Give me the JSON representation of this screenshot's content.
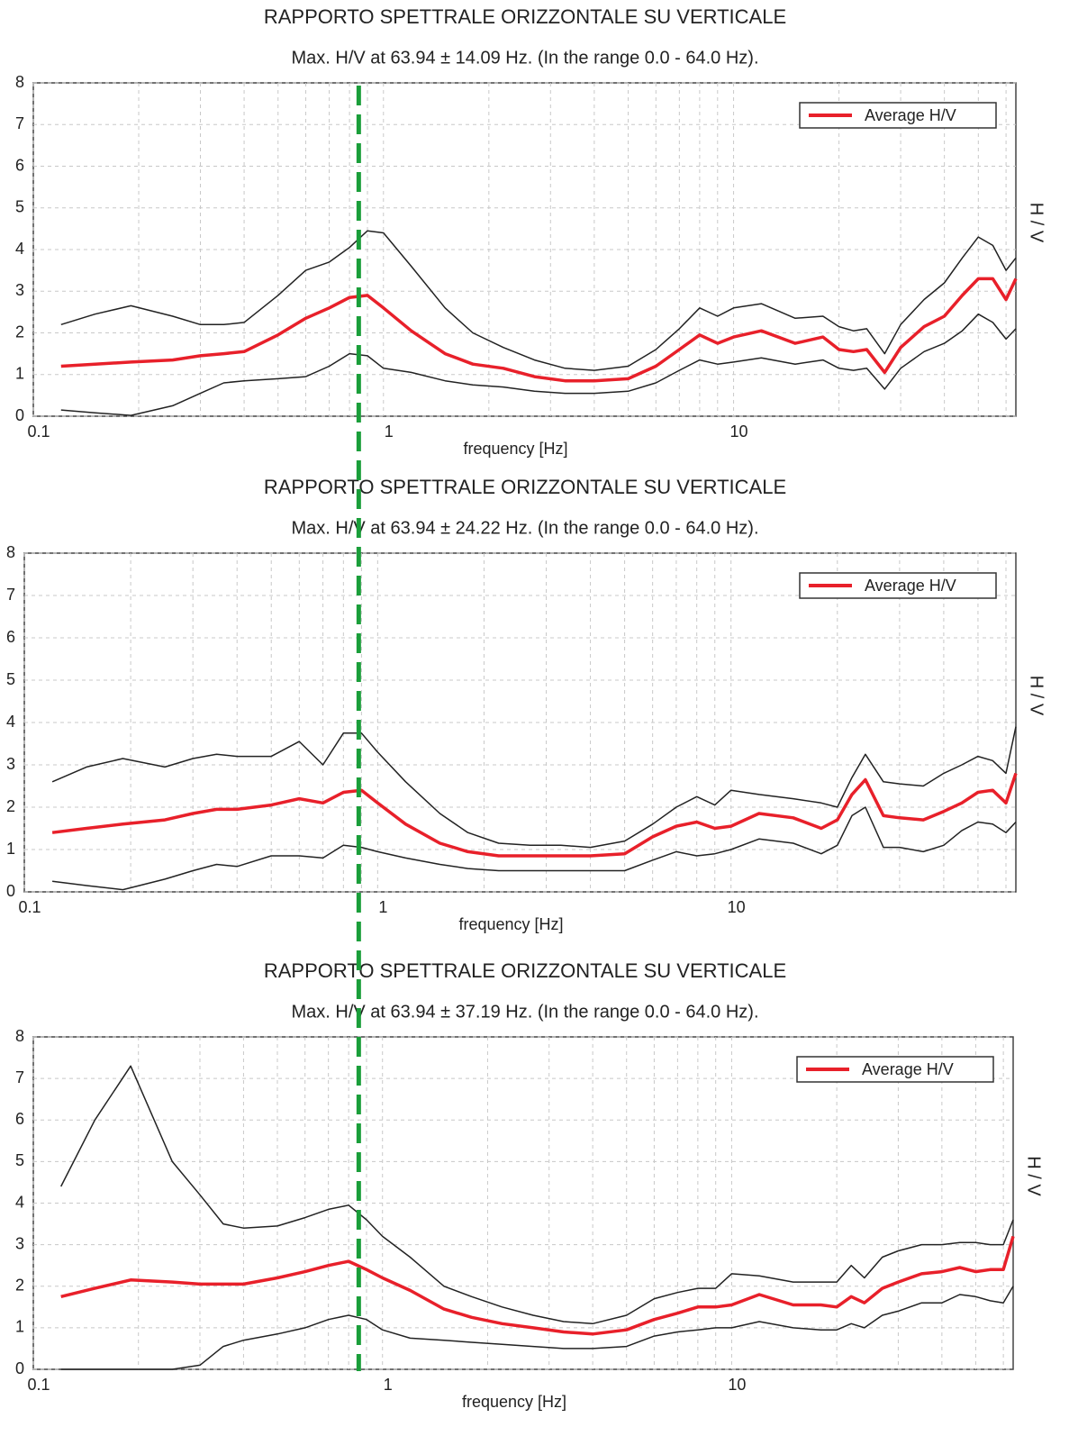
{
  "chart_data": [
    {
      "type": "line",
      "title": "RAPPORTO SPETTRALE ORIZZONTALE SU VERTICALE",
      "subtitle": "Max. H/V at 63.94 ± 14.09 Hz. (In the range 0.0 - 64.0 Hz).",
      "x_label": "frequency [Hz]",
      "y_label": "H / V",
      "x_scale": "log",
      "grid": true,
      "legend": "upper right",
      "xlim": [
        0.1,
        64
      ],
      "xticks": [
        0.1,
        1,
        10
      ],
      "xgrid": [
        0.2,
        0.3,
        0.4,
        0.5,
        0.6,
        0.7,
        0.8,
        0.9,
        2,
        3,
        4,
        5,
        6,
        7,
        8,
        9,
        20,
        30,
        40,
        50,
        60
      ],
      "ylim": [
        0,
        8
      ],
      "yticks": [
        0,
        1,
        2,
        3,
        4,
        5,
        6,
        7,
        8
      ],
      "x": [
        0.12,
        0.15,
        0.19,
        0.25,
        0.3,
        0.35,
        0.4,
        0.5,
        0.6,
        0.7,
        0.8,
        0.9,
        1.0,
        1.2,
        1.5,
        1.8,
        2.2,
        2.7,
        3.3,
        4,
        5,
        6,
        7,
        8,
        9,
        10,
        12,
        15,
        18,
        20,
        22,
        24,
        27,
        30,
        35,
        40,
        45,
        50,
        55,
        60,
        64
      ],
      "series": [
        {
          "color": "#222222",
          "values": [
            2.2,
            2.45,
            2.65,
            2.4,
            2.2,
            2.2,
            2.25,
            2.9,
            3.5,
            3.7,
            4.05,
            4.45,
            4.4,
            3.6,
            2.6,
            2.0,
            1.65,
            1.35,
            1.15,
            1.1,
            1.2,
            1.6,
            2.1,
            2.6,
            2.4,
            2.6,
            2.7,
            2.35,
            2.4,
            2.15,
            2.05,
            2.1,
            1.5,
            2.2,
            2.8,
            3.2,
            3.8,
            4.3,
            4.1,
            3.5,
            3.8
          ]
        },
        {
          "color": "#222222",
          "values": [
            0.15,
            0.08,
            0.02,
            0.25,
            0.55,
            0.8,
            0.85,
            0.9,
            0.95,
            1.2,
            1.5,
            1.45,
            1.15,
            1.05,
            0.85,
            0.75,
            0.7,
            0.6,
            0.55,
            0.55,
            0.6,
            0.8,
            1.1,
            1.35,
            1.25,
            1.3,
            1.4,
            1.25,
            1.35,
            1.15,
            1.1,
            1.15,
            0.65,
            1.15,
            1.55,
            1.75,
            2.05,
            2.45,
            2.25,
            1.85,
            2.1
          ]
        },
        {
          "name": "Average H/V",
          "color": "#e8202a",
          "values": [
            1.2,
            1.25,
            1.3,
            1.35,
            1.45,
            1.5,
            1.55,
            1.95,
            2.35,
            2.6,
            2.85,
            2.9,
            2.6,
            2.05,
            1.5,
            1.25,
            1.15,
            0.95,
            0.85,
            0.85,
            0.9,
            1.2,
            1.6,
            1.95,
            1.75,
            1.9,
            2.05,
            1.75,
            1.9,
            1.6,
            1.55,
            1.6,
            1.05,
            1.65,
            2.15,
            2.4,
            2.9,
            3.3,
            3.3,
            2.8,
            3.3
          ]
        }
      ]
    },
    {
      "type": "line",
      "title": "RAPPORTO SPETTRALE ORIZZONTALE SU VERTICALE",
      "subtitle": "Max. H/V at 63.94 ± 24.22 Hz. (In the range 0.0 - 64.0 Hz).",
      "x_label": "frequency [Hz]",
      "y_label": "H / V",
      "x_scale": "log",
      "grid": true,
      "legend": "upper right",
      "xlim": [
        0.1,
        64
      ],
      "xticks": [
        0.1,
        1,
        10
      ],
      "xgrid": [
        0.2,
        0.3,
        0.4,
        0.5,
        0.6,
        0.7,
        0.8,
        0.9,
        2,
        3,
        4,
        5,
        6,
        7,
        8,
        9,
        20,
        30,
        40,
        50,
        60
      ],
      "ylim": [
        0,
        8
      ],
      "yticks": [
        0,
        1,
        2,
        3,
        4,
        5,
        6,
        7,
        8
      ],
      "x": [
        0.12,
        0.15,
        0.19,
        0.25,
        0.3,
        0.35,
        0.4,
        0.5,
        0.6,
        0.7,
        0.8,
        0.9,
        1.0,
        1.2,
        1.5,
        1.8,
        2.2,
        2.7,
        3.3,
        4,
        5,
        6,
        7,
        8,
        9,
        10,
        12,
        15,
        18,
        20,
        22,
        24,
        27,
        30,
        35,
        40,
        45,
        50,
        55,
        60,
        64
      ],
      "series": [
        {
          "color": "#222222",
          "values": [
            2.6,
            2.95,
            3.15,
            2.95,
            3.15,
            3.25,
            3.2,
            3.2,
            3.55,
            3.0,
            3.75,
            3.75,
            3.3,
            2.6,
            1.85,
            1.4,
            1.15,
            1.1,
            1.1,
            1.05,
            1.2,
            1.6,
            2.0,
            2.25,
            2.05,
            2.4,
            2.3,
            2.2,
            2.1,
            2.0,
            2.7,
            3.25,
            2.6,
            2.55,
            2.5,
            2.8,
            3.0,
            3.2,
            3.1,
            2.8,
            3.9
          ]
        },
        {
          "color": "#222222",
          "values": [
            0.25,
            0.15,
            0.05,
            0.3,
            0.5,
            0.65,
            0.6,
            0.85,
            0.85,
            0.8,
            1.1,
            1.05,
            0.95,
            0.8,
            0.65,
            0.55,
            0.5,
            0.5,
            0.5,
            0.5,
            0.5,
            0.75,
            0.95,
            0.85,
            0.9,
            1.0,
            1.25,
            1.15,
            0.9,
            1.1,
            1.8,
            2.0,
            1.05,
            1.05,
            0.95,
            1.1,
            1.45,
            1.65,
            1.6,
            1.4,
            1.65
          ]
        },
        {
          "name": "Average H/V",
          "color": "#e8202a",
          "values": [
            1.4,
            1.5,
            1.6,
            1.7,
            1.85,
            1.95,
            1.95,
            2.05,
            2.2,
            2.1,
            2.35,
            2.4,
            2.1,
            1.6,
            1.15,
            0.95,
            0.85,
            0.85,
            0.85,
            0.85,
            0.9,
            1.3,
            1.55,
            1.65,
            1.5,
            1.55,
            1.85,
            1.75,
            1.5,
            1.7,
            2.3,
            2.65,
            1.8,
            1.75,
            1.7,
            1.9,
            2.1,
            2.35,
            2.4,
            2.1,
            2.8
          ]
        }
      ]
    },
    {
      "type": "line",
      "title": "RAPPORTO SPETTRALE ORIZZONTALE SU VERTICALE",
      "subtitle": "Max. H/V at 63.94 ± 37.19 Hz. (In the range 0.0 - 64.0 Hz).",
      "x_label": "frequency [Hz]",
      "y_label": "H / V",
      "x_scale": "log",
      "grid": true,
      "legend": "upper right",
      "xlim": [
        0.1,
        64
      ],
      "xticks": [
        0.1,
        1,
        10
      ],
      "xgrid": [
        0.2,
        0.3,
        0.4,
        0.5,
        0.6,
        0.7,
        0.8,
        0.9,
        2,
        3,
        4,
        5,
        6,
        7,
        8,
        9,
        20,
        30,
        40,
        50,
        60
      ],
      "ylim": [
        0,
        8
      ],
      "yticks": [
        0,
        1,
        2,
        3,
        4,
        5,
        6,
        7,
        8
      ],
      "x": [
        0.12,
        0.15,
        0.19,
        0.25,
        0.3,
        0.35,
        0.4,
        0.5,
        0.6,
        0.7,
        0.8,
        0.9,
        1.0,
        1.2,
        1.5,
        1.8,
        2.2,
        2.7,
        3.3,
        4,
        5,
        6,
        7,
        8,
        9,
        10,
        12,
        15,
        18,
        20,
        22,
        24,
        27,
        30,
        35,
        40,
        45,
        50,
        55,
        60,
        64
      ],
      "series": [
        {
          "color": "#222222",
          "values": [
            4.4,
            6.0,
            7.3,
            5.0,
            4.2,
            3.5,
            3.4,
            3.45,
            3.65,
            3.85,
            3.95,
            3.6,
            3.2,
            2.7,
            2.0,
            1.75,
            1.5,
            1.3,
            1.15,
            1.1,
            1.3,
            1.7,
            1.85,
            1.95,
            1.95,
            2.3,
            2.25,
            2.1,
            2.1,
            2.1,
            2.5,
            2.2,
            2.7,
            2.85,
            3.0,
            3.0,
            3.05,
            3.05,
            3.0,
            3.0,
            3.6
          ]
        },
        {
          "color": "#222222",
          "values": [
            0,
            0,
            0,
            0,
            0.1,
            0.55,
            0.7,
            0.85,
            1.0,
            1.2,
            1.3,
            1.2,
            0.95,
            0.75,
            0.7,
            0.65,
            0.6,
            0.55,
            0.5,
            0.5,
            0.55,
            0.8,
            0.9,
            0.95,
            1.0,
            1.0,
            1.15,
            1.0,
            0.95,
            0.95,
            1.1,
            1.0,
            1.3,
            1.4,
            1.6,
            1.6,
            1.8,
            1.75,
            1.65,
            1.6,
            2.0
          ]
        },
        {
          "name": "Average H/V",
          "color": "#e8202a",
          "values": [
            1.75,
            1.95,
            2.15,
            2.1,
            2.05,
            2.05,
            2.05,
            2.2,
            2.35,
            2.5,
            2.6,
            2.4,
            2.2,
            1.9,
            1.45,
            1.25,
            1.1,
            1.0,
            0.9,
            0.85,
            0.95,
            1.2,
            1.35,
            1.5,
            1.5,
            1.55,
            1.8,
            1.55,
            1.55,
            1.5,
            1.75,
            1.6,
            1.95,
            2.1,
            2.3,
            2.35,
            2.45,
            2.35,
            2.4,
            2.4,
            3.2
          ]
        }
      ]
    }
  ],
  "marker_line": {
    "x": 0.85,
    "color": "#1a9e3a"
  }
}
